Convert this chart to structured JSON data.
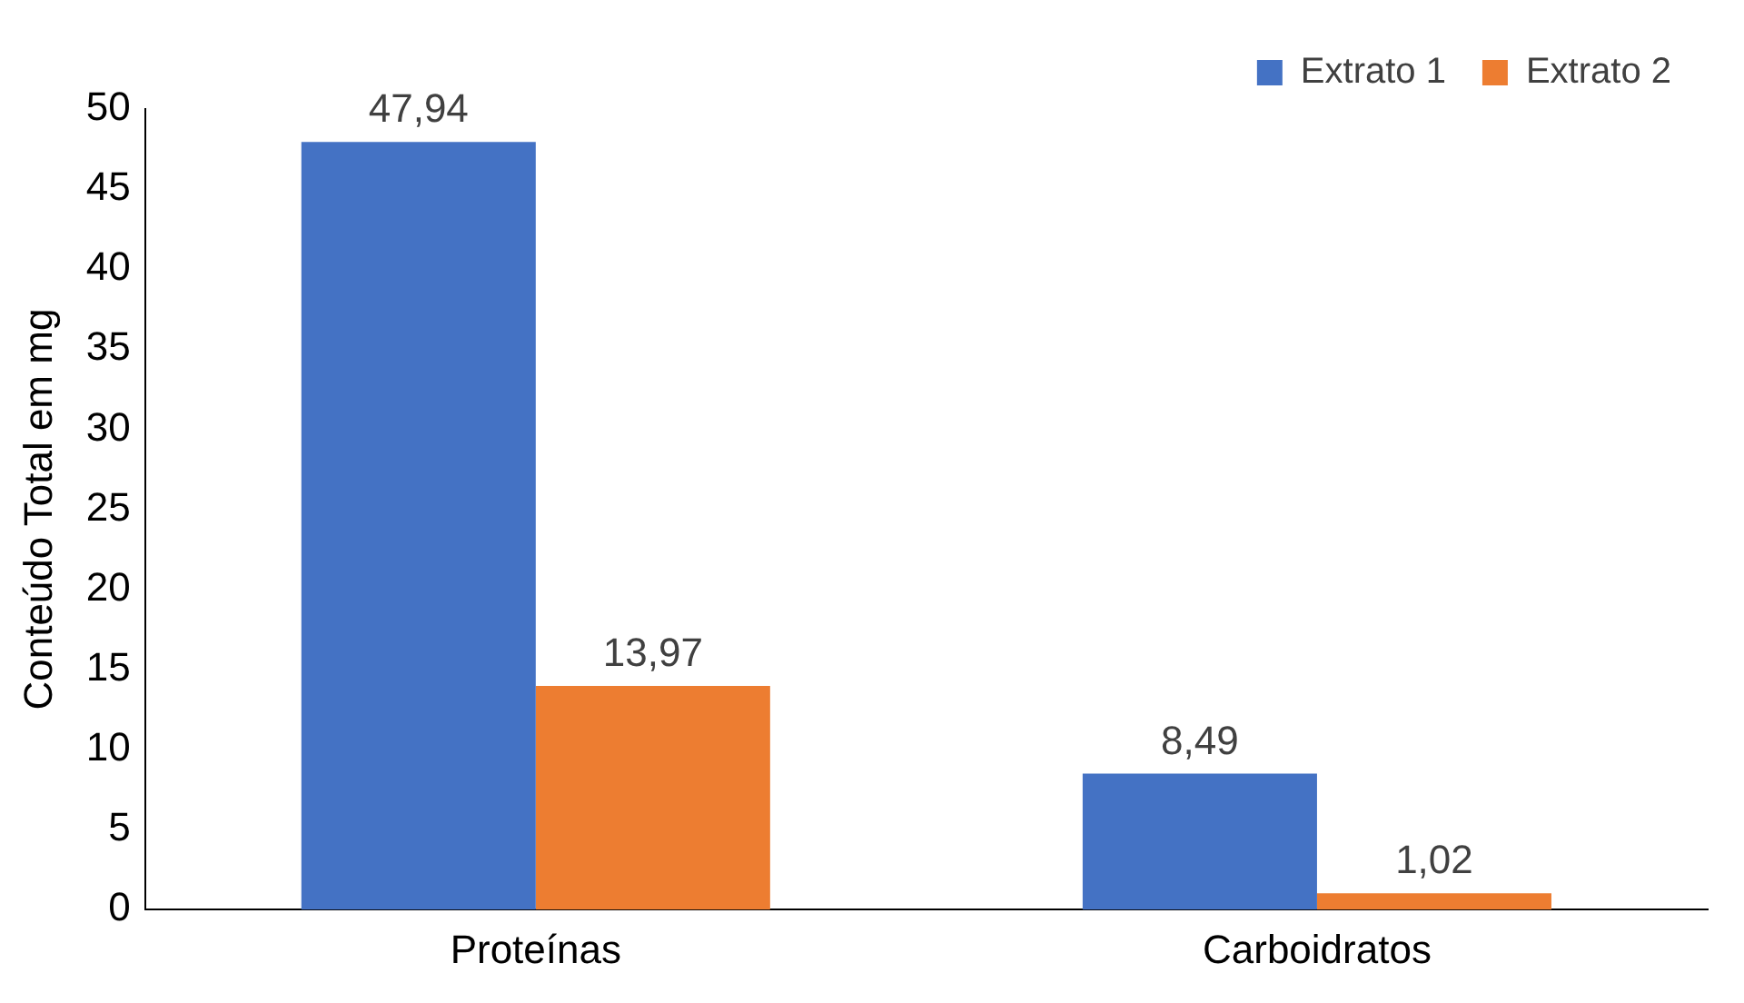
{
  "chart_data": {
    "type": "bar",
    "ylabel": "Conteúdo Total em mg",
    "categories": [
      "Proteínas",
      "Carboidratos"
    ],
    "series": [
      {
        "name": "Extrato 1",
        "color": "#4472c4",
        "values": [
          47.94,
          8.49
        ],
        "value_labels": [
          "47,94",
          "8,49"
        ]
      },
      {
        "name": "Extrato 2",
        "color": "#ed7d31",
        "values": [
          13.97,
          1.02
        ],
        "value_labels": [
          "13,97",
          "1,02"
        ]
      }
    ],
    "ylim": [
      0,
      50
    ],
    "yticks": [
      0,
      5,
      10,
      15,
      20,
      25,
      30,
      35,
      40,
      45,
      50
    ],
    "grid": false,
    "legend": "top right"
  }
}
